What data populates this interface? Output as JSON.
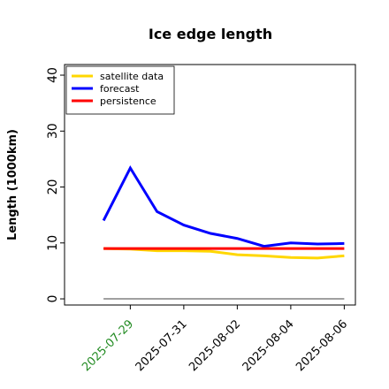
{
  "chart_data": {
    "type": "line",
    "title": "Ice edge length",
    "ylabel": "Length (1000km)",
    "x": [
      "2025-07-28",
      "2025-07-29",
      "2025-07-30",
      "2025-07-31",
      "2025-08-01",
      "2025-08-02",
      "2025-08-03",
      "2025-08-04",
      "2025-08-05",
      "2025-08-06"
    ],
    "series": [
      {
        "name": "satellite data",
        "color": "#ffd700",
        "values": [
          9.0,
          8.9,
          8.6,
          8.6,
          8.5,
          7.9,
          7.7,
          7.4,
          7.3,
          7.7
        ]
      },
      {
        "name": "forecast",
        "color": "#0000ff",
        "values": [
          14.0,
          23.4,
          15.6,
          13.2,
          11.7,
          10.8,
          9.4,
          10.0,
          9.8,
          9.9
        ]
      },
      {
        "name": "persistence",
        "color": "#ff0000",
        "values": [
          9.0,
          9.0,
          9.0,
          9.0,
          9.0,
          9.0,
          9.0,
          9.0,
          9.0,
          9.0
        ]
      },
      {
        "color": "#808080",
        "values": [
          0,
          0,
          0,
          0,
          0,
          0,
          0,
          0,
          0,
          0
        ]
      }
    ],
    "xlim": [
      "2025-07-26T13:00",
      "2025-08-06T10:00"
    ],
    "xticks": [
      "2025-07-29",
      "2025-07-31",
      "2025-08-02",
      "2025-08-04",
      "2025-08-06"
    ],
    "xtick_colors": [
      "#228b22",
      "#000000",
      "#000000",
      "#000000",
      "#000000"
    ],
    "ylim": [
      -1.1,
      41.9
    ],
    "yticks": [
      0,
      10,
      20,
      30,
      40
    ],
    "legend": "upper left"
  }
}
